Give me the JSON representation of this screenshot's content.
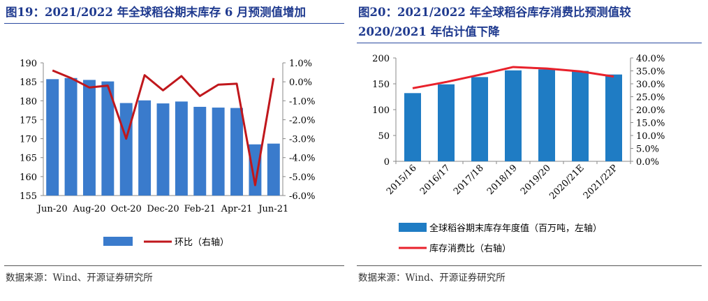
{
  "left": {
    "title": "图19：2021/2022 年全球稻谷期末库存 6 月预测值增加",
    "source": "数据来源：Wind、开源证券研究所",
    "chart_data": {
      "type": "bar",
      "categories": [
        "Jun-20",
        "Jul-20",
        "Aug-20",
        "Sep-20",
        "Oct-20",
        "Nov-20",
        "Dec-20",
        "Jan-21",
        "Feb-21",
        "Mar-21",
        "Apr-21",
        "May-21",
        "Jun-21"
      ],
      "x_tick_labels": [
        "Jun-20",
        "Aug-20",
        "Oct-20",
        "Dec-20",
        "Feb-21",
        "Apr-21",
        "Jun-21"
      ],
      "series": [
        {
          "name": "",
          "type": "bar",
          "axis": "left",
          "color": "#3a7bcc",
          "values": [
            185.7,
            186.0,
            185.5,
            185.1,
            179.4,
            180.1,
            179.3,
            179.8,
            178.4,
            178.2,
            178.1,
            168.5,
            168.7
          ]
        },
        {
          "name": "环比（右轴）",
          "type": "line",
          "axis": "right",
          "color": "#c0171c",
          "values": [
            0.6,
            0.2,
            -0.3,
            -0.2,
            -3.0,
            0.35,
            -0.45,
            0.3,
            -0.75,
            -0.15,
            -0.1,
            -5.45,
            0.2
          ]
        }
      ],
      "ylim_left": [
        155,
        190
      ],
      "yticks_left": [
        "155",
        "160",
        "165",
        "170",
        "175",
        "180",
        "185",
        "190"
      ],
      "ylim_right": [
        -6.0,
        1.0
      ],
      "yticks_right": [
        "1.0%",
        "0.0%",
        "-1.0%",
        "-2.0%",
        "-3.0%",
        "-4.0%",
        "-5.0%",
        "-6.0%"
      ],
      "legend": [
        {
          "label": "",
          "kind": "bar",
          "color": "#3a7bcc"
        },
        {
          "label": "环比（右轴）",
          "kind": "line",
          "color": "#c0171c"
        }
      ],
      "grid": false
    }
  },
  "right": {
    "title_line1": "图20：2021/2022  年全球稻谷库存消费比预测值较",
    "title_line2": "2020/2021 年估计值下降",
    "source": "数据来源：Wind、开源证券研究所",
    "chart_data": {
      "type": "bar",
      "categories": [
        "2015/16",
        "2016/17",
        "2017/18",
        "2018/19",
        "2019/20",
        "2020/21E",
        "2021/22P"
      ],
      "series": [
        {
          "name": "全球稻谷期末库存年度值（百万吨，左轴）",
          "type": "bar",
          "axis": "left",
          "color": "#1f7cc4",
          "values": [
            132,
            149,
            163,
            176,
            178,
            175,
            168
          ]
        },
        {
          "name": "库存消费比（右轴）",
          "type": "line",
          "axis": "right",
          "color": "#e8212b",
          "values": [
            28.3,
            30.7,
            33.5,
            36.5,
            35.9,
            34.8,
            32.8
          ]
        }
      ],
      "ylim_left": [
        0,
        200
      ],
      "yticks_left": [
        "0",
        "50",
        "100",
        "150",
        "200"
      ],
      "ylim_right": [
        0,
        40
      ],
      "yticks_right": [
        "0.0%",
        "5.0%",
        "10.0%",
        "15.0%",
        "20.0%",
        "25.0%",
        "30.0%",
        "35.0%",
        "40.0%"
      ],
      "legend": [
        {
          "label": "全球稻谷期末库存年度值（百万吨，左轴）",
          "kind": "bar",
          "color": "#1f7cc4"
        },
        {
          "label": "库存消费比（右轴）",
          "kind": "line",
          "color": "#e8212b"
        }
      ],
      "grid": false
    }
  }
}
